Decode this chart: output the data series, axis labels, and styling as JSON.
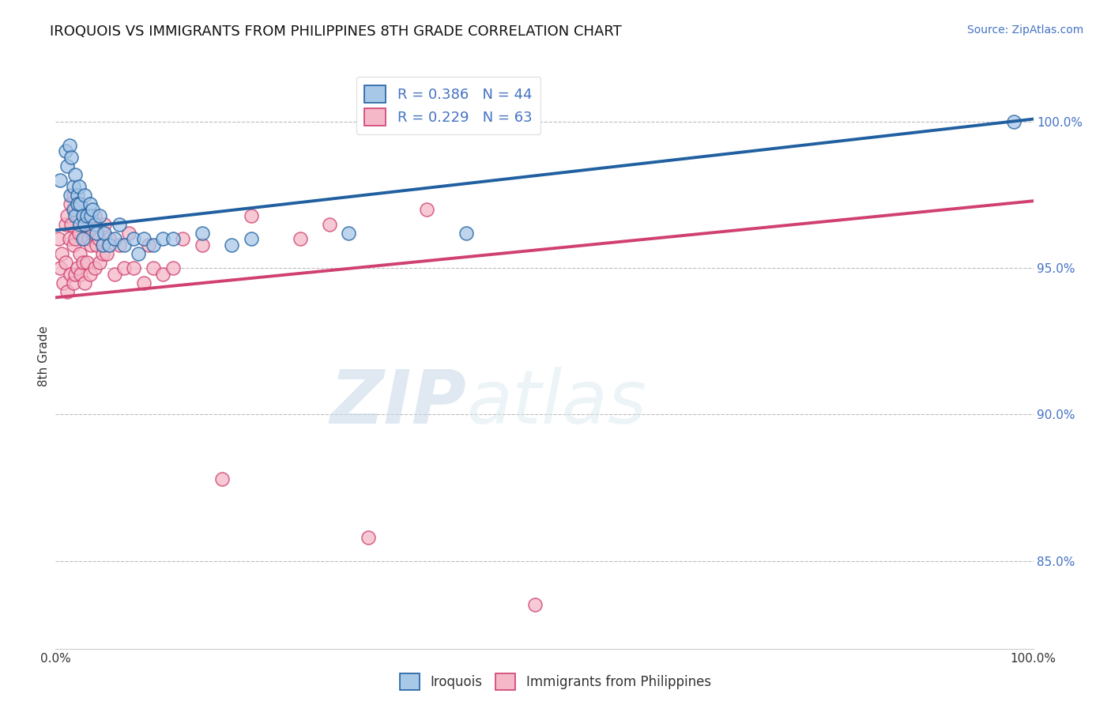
{
  "title": "IROQUOIS VS IMMIGRANTS FROM PHILIPPINES 8TH GRADE CORRELATION CHART",
  "source_text": "Source: ZipAtlas.com",
  "ylabel": "8th Grade",
  "xlim": [
    0.0,
    1.0
  ],
  "ylim": [
    0.82,
    1.02
  ],
  "yticks_right": [
    0.85,
    0.9,
    0.95,
    1.0
  ],
  "ytick_right_labels": [
    "85.0%",
    "90.0%",
    "95.0%",
    "100.0%"
  ],
  "blue_color": "#a8c8e8",
  "pink_color": "#f4b8c8",
  "blue_line_color": "#2060a0",
  "pink_line_color": "#d04070",
  "legend_blue_R": "R = 0.386",
  "legend_blue_N": "N = 44",
  "legend_pink_R": "R = 0.229",
  "legend_pink_N": "N = 63",
  "title_fontsize": 13,
  "watermark_zip": "ZIP",
  "watermark_atlas": "atlas",
  "blue_scatter_x": [
    0.005,
    0.01,
    0.012,
    0.014,
    0.015,
    0.016,
    0.018,
    0.018,
    0.02,
    0.02,
    0.022,
    0.022,
    0.024,
    0.025,
    0.025,
    0.028,
    0.028,
    0.03,
    0.03,
    0.032,
    0.035,
    0.036,
    0.038,
    0.04,
    0.042,
    0.045,
    0.048,
    0.05,
    0.055,
    0.06,
    0.065,
    0.07,
    0.08,
    0.085,
    0.09,
    0.1,
    0.11,
    0.12,
    0.15,
    0.18,
    0.2,
    0.3,
    0.42,
    0.98
  ],
  "blue_scatter_y": [
    0.98,
    0.99,
    0.985,
    0.992,
    0.975,
    0.988,
    0.97,
    0.978,
    0.982,
    0.968,
    0.975,
    0.972,
    0.978,
    0.965,
    0.972,
    0.968,
    0.96,
    0.975,
    0.965,
    0.968,
    0.972,
    0.968,
    0.97,
    0.965,
    0.962,
    0.968,
    0.958,
    0.962,
    0.958,
    0.96,
    0.965,
    0.958,
    0.96,
    0.955,
    0.96,
    0.958,
    0.96,
    0.96,
    0.962,
    0.958,
    0.96,
    0.962,
    0.962,
    1.0
  ],
  "pink_scatter_x": [
    0.003,
    0.005,
    0.006,
    0.008,
    0.01,
    0.01,
    0.012,
    0.012,
    0.014,
    0.015,
    0.015,
    0.016,
    0.018,
    0.018,
    0.018,
    0.02,
    0.02,
    0.02,
    0.022,
    0.022,
    0.024,
    0.025,
    0.025,
    0.026,
    0.028,
    0.028,
    0.03,
    0.03,
    0.032,
    0.032,
    0.034,
    0.035,
    0.035,
    0.036,
    0.038,
    0.04,
    0.04,
    0.042,
    0.044,
    0.045,
    0.048,
    0.05,
    0.052,
    0.055,
    0.06,
    0.065,
    0.07,
    0.075,
    0.08,
    0.09,
    0.095,
    0.1,
    0.11,
    0.12,
    0.13,
    0.15,
    0.17,
    0.2,
    0.25,
    0.28,
    0.32,
    0.38,
    0.49
  ],
  "pink_scatter_y": [
    0.96,
    0.95,
    0.955,
    0.945,
    0.965,
    0.952,
    0.968,
    0.942,
    0.96,
    0.972,
    0.948,
    0.965,
    0.975,
    0.958,
    0.945,
    0.97,
    0.96,
    0.948,
    0.968,
    0.95,
    0.962,
    0.972,
    0.955,
    0.948,
    0.965,
    0.952,
    0.96,
    0.945,
    0.968,
    0.952,
    0.96,
    0.965,
    0.948,
    0.958,
    0.962,
    0.968,
    0.95,
    0.958,
    0.96,
    0.952,
    0.955,
    0.965,
    0.955,
    0.96,
    0.948,
    0.958,
    0.95,
    0.962,
    0.95,
    0.945,
    0.958,
    0.95,
    0.948,
    0.95,
    0.96,
    0.958,
    0.878,
    0.968,
    0.96,
    0.965,
    0.858,
    0.97,
    0.835
  ]
}
